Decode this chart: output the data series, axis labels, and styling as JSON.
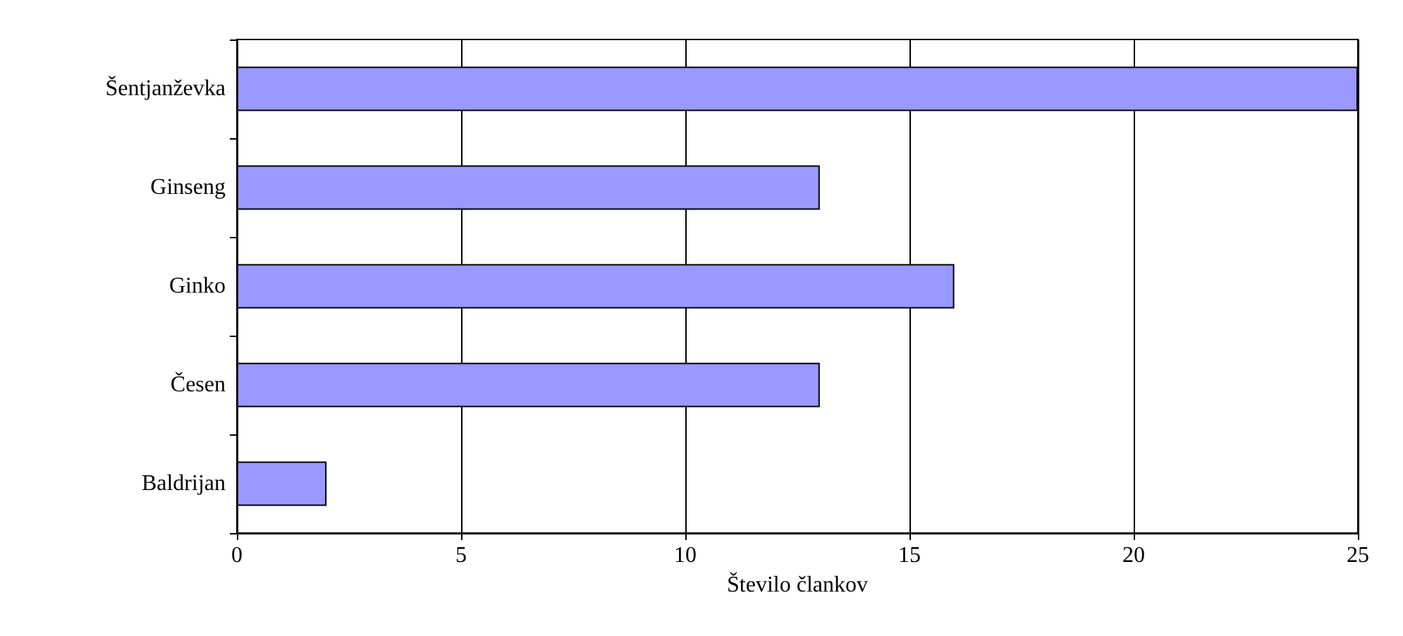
{
  "chart_data": {
    "type": "bar",
    "orientation": "horizontal",
    "xlabel": "Število člankov",
    "categories": [
      "Šentjanževka",
      "Ginseng",
      "Ginko",
      "Česen",
      "Baldrijan"
    ],
    "values": [
      25,
      13,
      16,
      13,
      2
    ],
    "color": "#9999ff",
    "xlim": [
      0,
      25
    ],
    "xticks": [
      0,
      5,
      10,
      15,
      20,
      25
    ],
    "grid": "x"
  }
}
